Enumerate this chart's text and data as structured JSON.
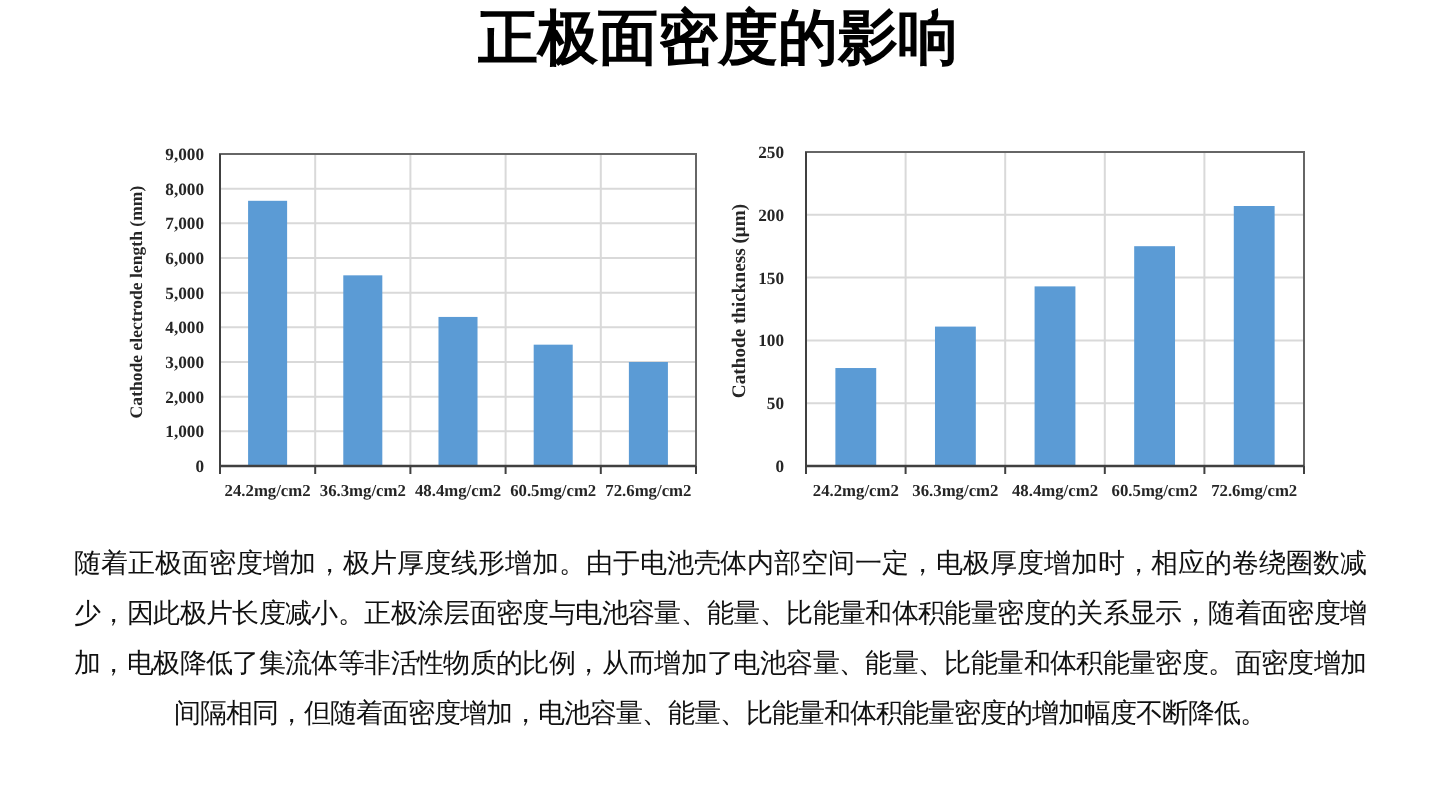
{
  "chart_data": [
    {
      "type": "bar",
      "title": "正极面密度的影响",
      "ylabel": "Cathode electrode length (mm)",
      "categories": [
        "24.2mg/cm2",
        "36.3mg/cm2",
        "48.4mg/cm2",
        "60.5mg/cm2",
        "72.6mg/cm2"
      ],
      "values": [
        7650,
        5500,
        4300,
        3500,
        3000
      ],
      "color": "#5b9bd5",
      "ylim": [
        0,
        9000
      ],
      "yticks": [
        0,
        {
          "value": 1000,
          "label": "1,000"
        },
        {
          "value": 2000,
          "label": "2,000"
        },
        {
          "value": 3000,
          "label": "3,000"
        },
        {
          "value": 4000,
          "label": "4,000"
        },
        {
          "value": 5000,
          "label": "5,000"
        },
        {
          "value": 6000,
          "label": "6,000"
        },
        {
          "value": 7000,
          "label": "7,000"
        },
        {
          "value": 8000,
          "label": "8,000"
        },
        {
          "value": 9000,
          "label": "9,000"
        }
      ],
      "grid": true
    },
    {
      "type": "bar",
      "ylabel": "Cathode thickness (μm)",
      "categories": [
        "24.2mg/cm2",
        "36.3mg/cm2",
        "48.4mg/cm2",
        "60.5mg/cm2",
        "72.6mg/cm2"
      ],
      "values": [
        78,
        111,
        143,
        175,
        207
      ],
      "color": "#5b9bd5",
      "ylim": [
        0,
        250
      ],
      "yticks": [
        0,
        50,
        100,
        150,
        200,
        250
      ],
      "grid": true,
      "annotations": [
        "随着正极面密度增加，极片厚度线形增加。由于电池壳体内部空间一定，电极厚度增加时，相应的卷绕圈数减少，因此极片长度减小。正极涂层面密度与电池容量、能量、比能量和体积能量密度的关系显示，随着面密度增加，电极降低了集流体等非活性物质的比例，从而增加了电池容量、能量、比能量和体积能量密度。面密度增加间隔相同，但随着面密度增加，电池容量、能量、比能量和体积能量密度的增加幅度不断降低。"
      ]
    }
  ]
}
